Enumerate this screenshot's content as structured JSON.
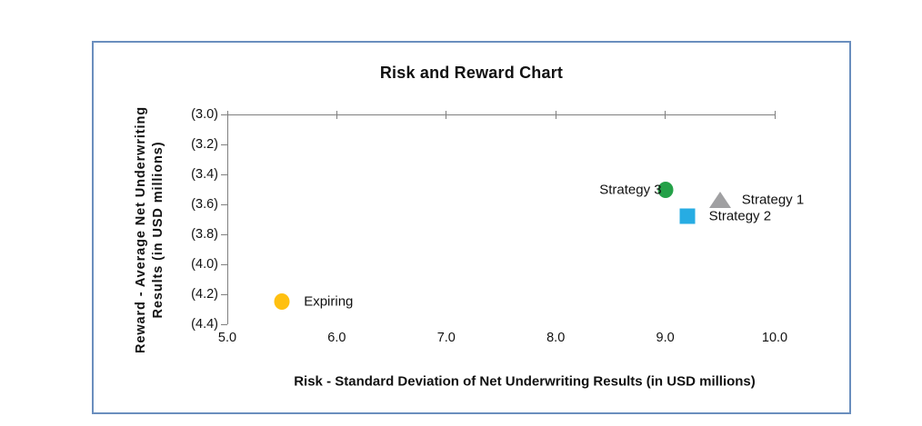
{
  "colors": {
    "frame_border": "#6a8ebe",
    "axis": "#7f7f7f",
    "text": "#111111",
    "expiring_gold": "#FFC010",
    "strategy3_green": "#24A148",
    "strategy2_blue": "#27ACE3",
    "strategy1_gray": "#A0A0A2"
  },
  "chart_data": {
    "type": "scatter",
    "title": "Risk and Reward Chart",
    "xlabel": "Risk - Standard Deviation of Net Underwriting Results (in USD millions)",
    "ylabel": "Reward - Average Net Underwriting Results (in USD millions)",
    "ylabel_lines": [
      "Reward - Average Net Underwriting",
      "Results (in USD millions)"
    ],
    "xlim": [
      5.0,
      10.0
    ],
    "ylim": [
      -4.4,
      -3.0
    ],
    "x_ticks": [
      5.0,
      6.0,
      7.0,
      8.0,
      9.0,
      10.0
    ],
    "x_tick_labels": [
      "5.0",
      "6.0",
      "7.0",
      "8.0",
      "9.0",
      "10.0"
    ],
    "y_ticks": [
      -3.0,
      -3.2,
      -3.4,
      -3.6,
      -3.8,
      -4.0,
      -4.2,
      -4.4
    ],
    "y_tick_labels": [
      "(3.0)",
      "(3.2)",
      "(3.4)",
      "(3.6)",
      "(3.8)",
      "(4.0)",
      "(4.2)",
      "(4.4)"
    ],
    "grid": false,
    "legend_position": "none (points labeled inline)",
    "series": [
      {
        "name": "Expiring",
        "x": 5.5,
        "y": -4.25,
        "marker": "circle",
        "color": "#FFC010",
        "label_side": "right"
      },
      {
        "name": "Strategy 3",
        "x": 9.0,
        "y": -3.5,
        "marker": "circle",
        "color": "#24A148",
        "label_side": "left"
      },
      {
        "name": "Strategy 2",
        "x": 9.2,
        "y": -3.68,
        "marker": "square",
        "color": "#27ACE3",
        "label_side": "right"
      },
      {
        "name": "Strategy 1",
        "x": 9.5,
        "y": -3.57,
        "marker": "triangle",
        "color": "#A0A0A2",
        "label_side": "right"
      }
    ]
  }
}
